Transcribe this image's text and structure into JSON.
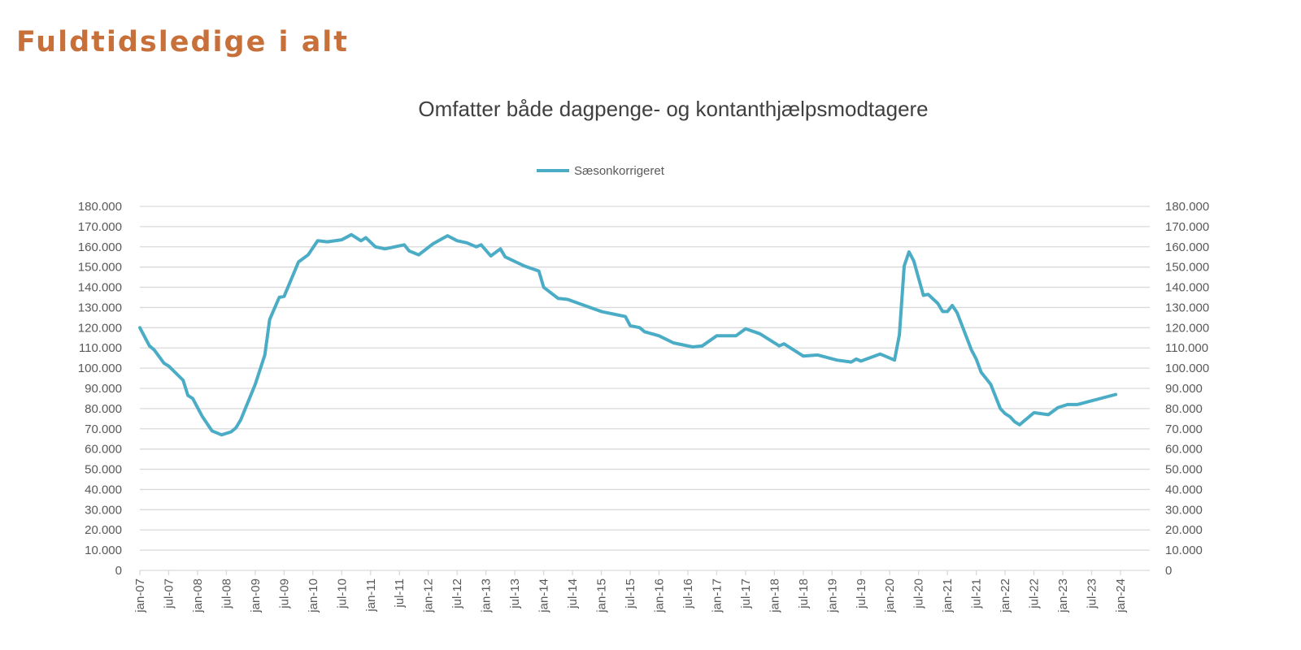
{
  "page": {
    "title": "Fuldtidsledige i alt"
  },
  "chart_data": {
    "type": "line",
    "title": "Omfatter både dagpenge- og kontanthjælpsmodtagere",
    "xlabel": "",
    "ylabel": "",
    "ylim": [
      0,
      180000
    ],
    "y_ticks": [
      "0",
      "10.000",
      "20.000",
      "30.000",
      "40.000",
      "50.000",
      "60.000",
      "70.000",
      "80.000",
      "90.000",
      "100.000",
      "110.000",
      "120.000",
      "130.000",
      "140.000",
      "150.000",
      "160.000",
      "170.000",
      "180.000"
    ],
    "secondary_y_axis": true,
    "x_range": [
      "2007-01",
      "2024-01"
    ],
    "x_ticks": [
      "jan-07",
      "jul-07",
      "jan-08",
      "jul-08",
      "jan-09",
      "jul-09",
      "jan-10",
      "jul-10",
      "jan-11",
      "jul-11",
      "jan-12",
      "jul-12",
      "jan-13",
      "jul-13",
      "jan-14",
      "jul-14",
      "jan-15",
      "jul-15",
      "jan-16",
      "jul-16",
      "jan-17",
      "jul-17",
      "jan-18",
      "jul-18",
      "jan-19",
      "jul-19",
      "jan-20",
      "jul-20",
      "jan-21",
      "jul-21",
      "jan-22",
      "jul-22",
      "jan-23",
      "jul-23",
      "jan-24"
    ],
    "grid": "horizontal",
    "legend_position": "top",
    "series": [
      {
        "name": "Sæsonkorrigeret",
        "color": "#4BACC6",
        "points": [
          [
            "2007-01",
            120000
          ],
          [
            "2007-03",
            111000
          ],
          [
            "2007-04",
            109000
          ],
          [
            "2007-06",
            102500
          ],
          [
            "2007-07",
            101000
          ],
          [
            "2007-10",
            94000
          ],
          [
            "2007-11",
            86500
          ],
          [
            "2007-12",
            85000
          ],
          [
            "2008-02",
            76000
          ],
          [
            "2008-04",
            69000
          ],
          [
            "2008-06",
            67000
          ],
          [
            "2008-08",
            68500
          ],
          [
            "2008-09",
            70500
          ],
          [
            "2008-10",
            74500
          ],
          [
            "2009-01",
            92000
          ],
          [
            "2009-03",
            106500
          ],
          [
            "2009-04",
            124000
          ],
          [
            "2009-06",
            135000
          ],
          [
            "2009-07",
            135500
          ],
          [
            "2009-10",
            152500
          ],
          [
            "2009-12",
            156000
          ],
          [
            "2010-02",
            163000
          ],
          [
            "2010-04",
            162500
          ],
          [
            "2010-07",
            163500
          ],
          [
            "2010-09",
            166000
          ],
          [
            "2010-11",
            163000
          ],
          [
            "2010-12",
            164500
          ],
          [
            "2011-02",
            160000
          ],
          [
            "2011-04",
            159000
          ],
          [
            "2011-06",
            160000
          ],
          [
            "2011-08",
            161000
          ],
          [
            "2011-09",
            158000
          ],
          [
            "2011-11",
            156000
          ],
          [
            "2012-02",
            161500
          ],
          [
            "2012-05",
            165500
          ],
          [
            "2012-07",
            163000
          ],
          [
            "2012-09",
            162000
          ],
          [
            "2012-11",
            160000
          ],
          [
            "2012-12",
            161000
          ],
          [
            "2013-02",
            155500
          ],
          [
            "2013-04",
            159000
          ],
          [
            "2013-05",
            155000
          ],
          [
            "2013-09",
            150500
          ],
          [
            "2013-12",
            148000
          ],
          [
            "2014-01",
            140000
          ],
          [
            "2014-04",
            134500
          ],
          [
            "2014-06",
            134000
          ],
          [
            "2015-01",
            128000
          ],
          [
            "2015-06",
            125500
          ],
          [
            "2015-07",
            121000
          ],
          [
            "2015-09",
            120000
          ],
          [
            "2015-10",
            118000
          ],
          [
            "2016-01",
            116000
          ],
          [
            "2016-04",
            112500
          ],
          [
            "2016-08",
            110500
          ],
          [
            "2016-10",
            111000
          ],
          [
            "2017-01",
            116000
          ],
          [
            "2017-05",
            116000
          ],
          [
            "2017-07",
            119500
          ],
          [
            "2017-10",
            117000
          ],
          [
            "2018-02",
            111000
          ],
          [
            "2018-03",
            112000
          ],
          [
            "2018-07",
            106000
          ],
          [
            "2018-10",
            106500
          ],
          [
            "2019-02",
            104000
          ],
          [
            "2019-05",
            103000
          ],
          [
            "2019-06",
            104500
          ],
          [
            "2019-07",
            103500
          ],
          [
            "2019-11",
            107000
          ],
          [
            "2020-02",
            104000
          ],
          [
            "2020-03",
            116500
          ],
          [
            "2020-04",
            150500
          ],
          [
            "2020-05",
            157500
          ],
          [
            "2020-06",
            153000
          ],
          [
            "2020-08",
            136000
          ],
          [
            "2020-09",
            136500
          ],
          [
            "2020-11",
            132000
          ],
          [
            "2020-12",
            128000
          ],
          [
            "2021-01",
            128000
          ],
          [
            "2021-02",
            131000
          ],
          [
            "2021-03",
            127500
          ],
          [
            "2021-06",
            109000
          ],
          [
            "2021-07",
            104500
          ],
          [
            "2021-08",
            98000
          ],
          [
            "2021-10",
            92000
          ],
          [
            "2021-12",
            80000
          ],
          [
            "2022-01",
            77500
          ],
          [
            "2022-02",
            76000
          ],
          [
            "2022-03",
            73500
          ],
          [
            "2022-04",
            72000
          ],
          [
            "2022-07",
            78000
          ],
          [
            "2022-10",
            77000
          ],
          [
            "2022-12",
            80500
          ],
          [
            "2023-02",
            82000
          ],
          [
            "2023-04",
            82000
          ],
          [
            "2023-12",
            87000
          ]
        ]
      }
    ]
  }
}
